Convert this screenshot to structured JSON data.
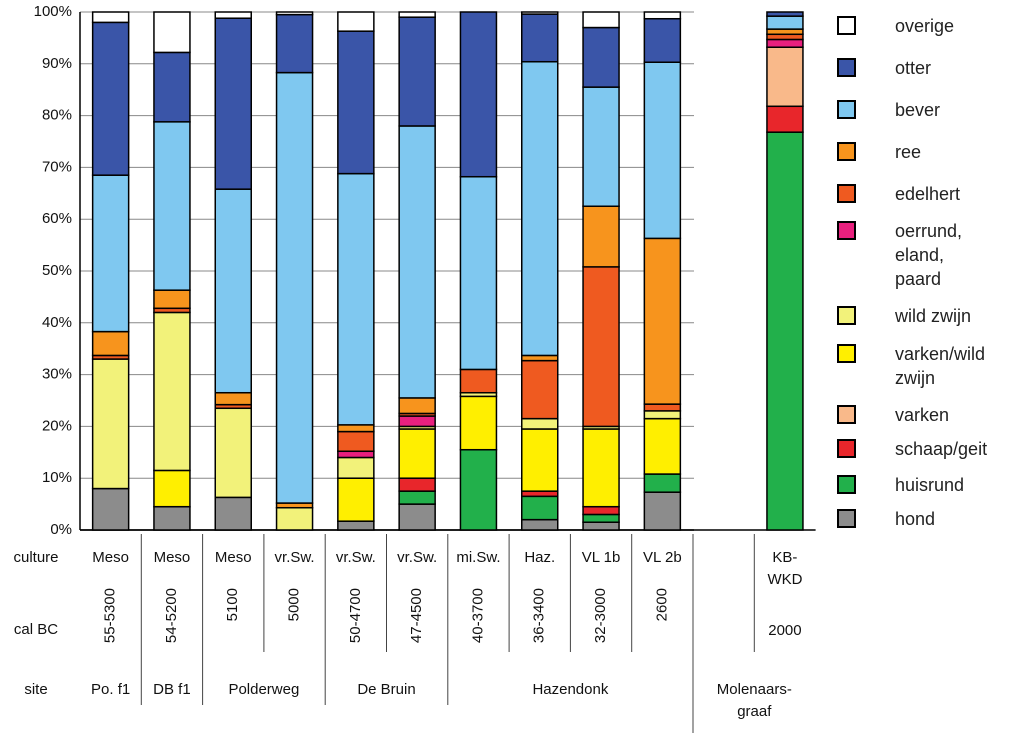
{
  "chart_data": {
    "type": "stacked_bar",
    "row_labels": [
      "culture",
      "cal BC",
      "site"
    ],
    "culture": [
      "Meso",
      "Meso",
      "Meso",
      "vr.Sw.",
      "vr.Sw.",
      "vr.Sw.",
      "mi.Sw.",
      "Haz.",
      "VL 1b",
      "VL 2b",
      null,
      "KB-WKD"
    ],
    "categories": [
      "55-5300",
      "54-5200",
      "5100",
      "5000",
      "50-4700",
      "47-4500",
      "40-3700",
      "36-3400",
      "32-3000",
      "2600",
      null,
      "2000"
    ],
    "site": [
      "Po. f1",
      "DB f1",
      "Polderweg",
      null,
      "De Bruin",
      null,
      "Hazendonk",
      null,
      null,
      null,
      "Molenaars-graaf",
      null
    ],
    "ylim": [
      0,
      100
    ],
    "yticks": [
      {
        "value": 0,
        "label": "0%"
      },
      {
        "value": 10,
        "label": "10%"
      },
      {
        "value": 20,
        "label": "20%"
      },
      {
        "value": 30,
        "label": "30%"
      },
      {
        "value": 40,
        "label": "40%"
      },
      {
        "value": 50,
        "label": "50%"
      },
      {
        "value": 60,
        "label": "60%"
      },
      {
        "value": 70,
        "label": "70%"
      },
      {
        "value": 80,
        "label": "80%"
      },
      {
        "value": 90,
        "label": "90%"
      },
      {
        "value": 100,
        "label": "100%"
      }
    ],
    "grid": true,
    "series": [
      {
        "name": "hond",
        "color": "#8c8c8c",
        "values": [
          8,
          4.5,
          6.3,
          0,
          1.7,
          5,
          0,
          2,
          1.5,
          7.3,
          null,
          0
        ]
      },
      {
        "name": "huisrund",
        "color": "#22b04b",
        "values": [
          0,
          0,
          0,
          0,
          0,
          2.5,
          15.5,
          4.5,
          1.5,
          3.5,
          null,
          76.8
        ]
      },
      {
        "name": "schaap/geit",
        "color": "#e8262b",
        "values": [
          0,
          0,
          0,
          0,
          0,
          2.5,
          0,
          1,
          1.5,
          0,
          null,
          5
        ]
      },
      {
        "name": "varken",
        "color": "#f9b98a",
        "values": [
          0,
          0,
          0,
          0,
          0,
          0,
          0,
          0,
          0,
          0,
          null,
          11.4
        ]
      },
      {
        "name": "varken/wild zwijn",
        "color": "#ffef00",
        "values": [
          0,
          7,
          0,
          0,
          8.3,
          9.5,
          10.3,
          12,
          15,
          10.7,
          null,
          0
        ]
      },
      {
        "name": "wild zwijn",
        "color": "#f2f27a",
        "values": [
          25,
          30.5,
          17.2,
          4.3,
          4,
          0.5,
          0.7,
          2,
          0.5,
          1.5,
          null,
          0
        ]
      },
      {
        "name": "oerrund, eland, paard",
        "color": "#e8207e",
        "values": [
          0,
          0,
          0,
          0,
          1.2,
          2,
          0,
          0,
          0,
          0,
          null,
          1.5
        ]
      },
      {
        "name": "edelhert",
        "color": "#ef5a20",
        "values": [
          0.7,
          0.8,
          0.7,
          0,
          3.8,
          0.5,
          4.5,
          11.2,
          30.8,
          1.3,
          null,
          1
        ]
      },
      {
        "name": "ree",
        "color": "#f7941d",
        "values": [
          4.6,
          3.5,
          2.3,
          0.9,
          1.3,
          3,
          0,
          1,
          11.7,
          32,
          null,
          1
        ]
      },
      {
        "name": "bever",
        "color": "#7fc8f0",
        "values": [
          30.2,
          32.5,
          39.3,
          83.1,
          48.5,
          52.5,
          37.2,
          56.7,
          23,
          34,
          null,
          2.5
        ]
      },
      {
        "name": "otter",
        "color": "#3a55a8",
        "values": [
          29.5,
          13.4,
          33,
          11.2,
          27.5,
          21,
          31.8,
          9.2,
          11.5,
          8.4,
          null,
          0.8
        ]
      },
      {
        "name": "overige",
        "color": "#ffffff",
        "values": [
          2,
          7.8,
          1.2,
          0.5,
          3.7,
          1,
          0,
          0.4,
          3,
          1.3,
          null,
          0
        ]
      }
    ]
  }
}
